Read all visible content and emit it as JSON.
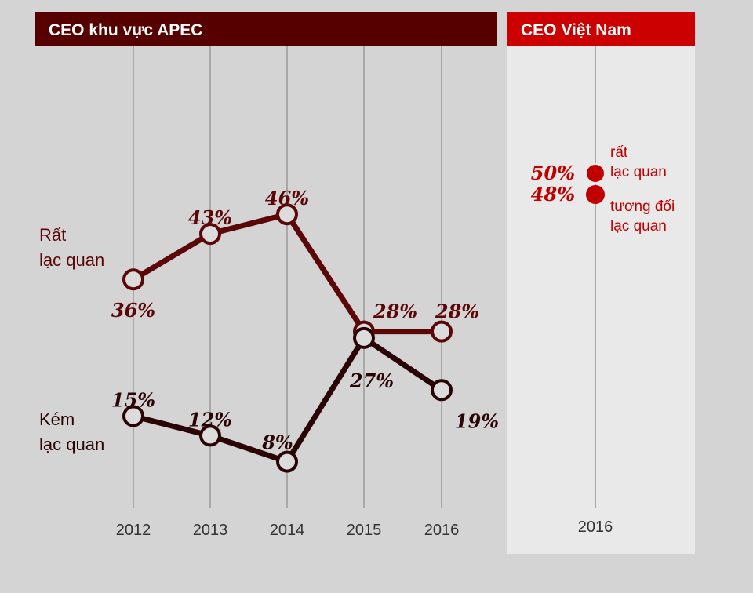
{
  "chart_data": [
    {
      "type": "line",
      "title": "CEO khu vực APEC",
      "categories": [
        "2012",
        "2013",
        "2014",
        "2015",
        "2016"
      ],
      "ylim": [
        0,
        60
      ],
      "grid": "vertical",
      "series": [
        {
          "name": "Rất lạc quan",
          "name_lines": [
            "Rất",
            "lạc quan"
          ],
          "values": [
            36,
            43,
            46,
            28,
            28
          ],
          "labels": [
            "36%",
            "43%",
            "46%",
            "28%",
            "28%"
          ],
          "color": "#5c0707"
        },
        {
          "name": "Kém lạc quan",
          "name_lines": [
            "Kém",
            "lạc quan"
          ],
          "values": [
            15,
            12,
            8,
            27,
            19
          ],
          "labels": [
            "15%",
            "12%",
            "8%",
            "27%",
            "19%"
          ],
          "color": "#2a0404"
        }
      ]
    },
    {
      "type": "scatter",
      "title": "CEO Việt Nam",
      "categories": [
        "2016"
      ],
      "series": [
        {
          "name": "rất lạc quan",
          "name_lines": [
            "rất",
            "lạc quan"
          ],
          "values": [
            50
          ],
          "labels": [
            "50%"
          ],
          "color": "#c00000"
        },
        {
          "name": "tương đối lạc quan",
          "name_lines": [
            "tương đối",
            "lạc quan"
          ],
          "values": [
            48
          ],
          "labels": [
            "48%"
          ],
          "color": "#c00000"
        }
      ]
    }
  ]
}
